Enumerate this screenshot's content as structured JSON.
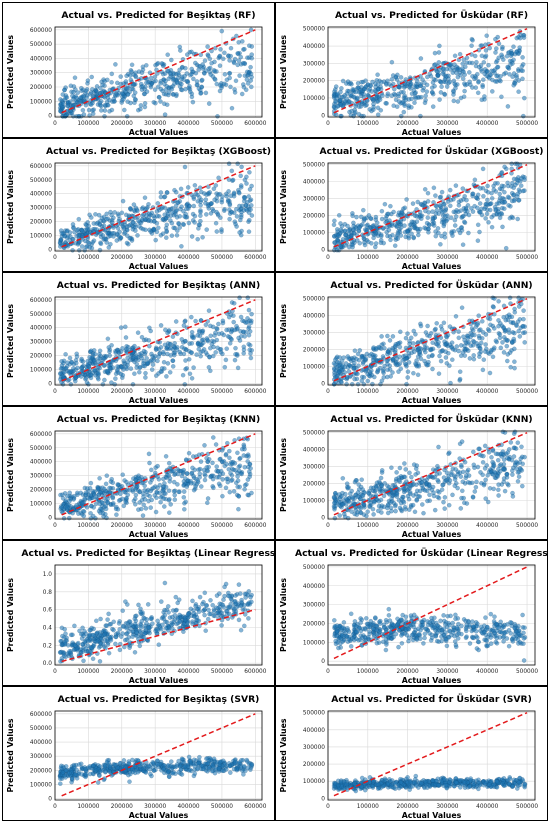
{
  "colors": {
    "point": "#1f77b4",
    "point_edge": "#0b3d66",
    "ideal_line": "#e31a1c"
  },
  "chart_data": [
    {
      "type": "scatter",
      "title": "Actual vs. Predicted for Beşiktaş (RF)",
      "xlabel": "Actual Values",
      "ylabel": "Predicted Values",
      "xlim": [
        0,
        620000
      ],
      "ylim": [
        -10000,
        620000
      ],
      "xticks": [
        0,
        100000,
        200000,
        300000,
        400000,
        500000,
        600000
      ],
      "yticks": [
        0,
        100000,
        200000,
        300000,
        400000,
        500000,
        600000
      ],
      "ideal_line": [
        [
          20000,
          20000
        ],
        [
          600000,
          600000
        ]
      ],
      "grid": true,
      "trend": "good"
    },
    {
      "type": "scatter",
      "title": "Actual vs. Predicted for Üsküdar (RF)",
      "xlabel": "Actual Values",
      "ylabel": "Predicted Values",
      "xlim": [
        0,
        520000
      ],
      "ylim": [
        -10000,
        510000
      ],
      "xticks": [
        0,
        100000,
        200000,
        300000,
        400000,
        500000
      ],
      "yticks": [
        0,
        100000,
        200000,
        300000,
        400000,
        500000
      ],
      "ideal_line": [
        [
          15000,
          15000
        ],
        [
          500000,
          500000
        ]
      ],
      "grid": true,
      "trend": "good"
    },
    {
      "type": "scatter",
      "title": "Actual vs. Predicted for Beşiktaş (XGBoost)",
      "xlabel": "Actual Values",
      "ylabel": "Predicted Values",
      "xlim": [
        0,
        620000
      ],
      "ylim": [
        -10000,
        620000
      ],
      "xticks": [
        0,
        100000,
        200000,
        300000,
        400000,
        500000,
        600000
      ],
      "yticks": [
        0,
        100000,
        200000,
        300000,
        400000,
        500000,
        600000
      ],
      "ideal_line": [
        [
          20000,
          20000
        ],
        [
          600000,
          600000
        ]
      ],
      "grid": true,
      "trend": "good"
    },
    {
      "type": "scatter",
      "title": "Actual vs. Predicted for Üsküdar (XGBoost)",
      "xlabel": "Actual Values",
      "ylabel": "Predicted Values",
      "xlim": [
        0,
        520000
      ],
      "ylim": [
        -10000,
        510000
      ],
      "xticks": [
        0,
        100000,
        200000,
        300000,
        400000,
        500000
      ],
      "yticks": [
        0,
        100000,
        200000,
        300000,
        400000,
        500000
      ],
      "ideal_line": [
        [
          15000,
          15000
        ],
        [
          500000,
          500000
        ]
      ],
      "grid": true,
      "trend": "good"
    },
    {
      "type": "scatter",
      "title": "Actual vs. Predicted for Beşiktaş (ANN)",
      "xlabel": "Actual Values",
      "ylabel": "Predicted Values",
      "xlim": [
        0,
        620000
      ],
      "ylim": [
        -10000,
        620000
      ],
      "xticks": [
        0,
        100000,
        200000,
        300000,
        400000,
        500000,
        600000
      ],
      "yticks": [
        0,
        100000,
        200000,
        300000,
        400000,
        500000,
        600000
      ],
      "ideal_line": [
        [
          20000,
          20000
        ],
        [
          600000,
          600000
        ]
      ],
      "grid": true,
      "trend": "good"
    },
    {
      "type": "scatter",
      "title": "Actual vs. Predicted for Üsküdar (ANN)",
      "xlabel": "Actual Values",
      "ylabel": "Predicted Values",
      "xlim": [
        0,
        520000
      ],
      "ylim": [
        -10000,
        510000
      ],
      "xticks": [
        0,
        100000,
        200000,
        300000,
        400000,
        500000
      ],
      "yticks": [
        0,
        100000,
        200000,
        300000,
        400000,
        500000
      ],
      "ideal_line": [
        [
          15000,
          15000
        ],
        [
          500000,
          500000
        ]
      ],
      "grid": true,
      "trend": "good"
    },
    {
      "type": "scatter",
      "title": "Actual vs. Predicted for Beşiktaş (KNN)",
      "xlabel": "Actual Values",
      "ylabel": "Predicted Values",
      "xlim": [
        0,
        620000
      ],
      "ylim": [
        -10000,
        620000
      ],
      "xticks": [
        0,
        100000,
        200000,
        300000,
        400000,
        500000,
        600000
      ],
      "yticks": [
        0,
        100000,
        200000,
        300000,
        400000,
        500000,
        600000
      ],
      "ideal_line": [
        [
          20000,
          20000
        ],
        [
          600000,
          600000
        ]
      ],
      "grid": true,
      "trend": "good"
    },
    {
      "type": "scatter",
      "title": "Actual vs. Predicted for Üsküdar (KNN)",
      "xlabel": "Actual Values",
      "ylabel": "Predicted Values",
      "xlim": [
        0,
        520000
      ],
      "ylim": [
        -10000,
        510000
      ],
      "xticks": [
        0,
        100000,
        200000,
        300000,
        400000,
        500000
      ],
      "yticks": [
        0,
        100000,
        200000,
        300000,
        400000,
        500000
      ],
      "ideal_line": [
        [
          15000,
          15000
        ],
        [
          500000,
          500000
        ]
      ],
      "grid": true,
      "trend": "good"
    },
    {
      "type": "scatter",
      "title": "Actual vs. Predicted for Beşiktaş (Linear Regression)",
      "xlabel": "Actual Values",
      "ylabel": "Predicted Values",
      "xlim": [
        0,
        620000
      ],
      "ylim": [
        -0.02,
        1.1
      ],
      "xticks": [
        0,
        100000,
        200000,
        300000,
        400000,
        500000,
        600000
      ],
      "yticks": [
        0.0,
        0.2,
        0.4,
        0.6,
        0.8,
        1.0
      ],
      "ytick_labels": [
        "0.0",
        "0.2",
        "0.4",
        "0.6",
        "0.8",
        "1.0"
      ],
      "ideal_line": [
        [
          20000,
          0.02
        ],
        [
          600000,
          0.6
        ]
      ],
      "grid": true,
      "trend": "linear_norm"
    },
    {
      "type": "scatter",
      "title": "Actual vs. Predicted for Üsküdar (Linear Regression)",
      "xlabel": "Actual Values",
      "ylabel": "Predicted Values",
      "xlim": [
        0,
        520000
      ],
      "ylim": [
        -20000,
        510000
      ],
      "xticks": [
        0,
        100000,
        200000,
        300000,
        400000,
        500000
      ],
      "yticks": [
        0,
        100000,
        200000,
        300000,
        400000,
        500000
      ],
      "ideal_line": [
        [
          15000,
          15000
        ],
        [
          500000,
          500000
        ]
      ],
      "grid": true,
      "trend": "flat_band"
    },
    {
      "type": "scatter",
      "title": "Actual vs. Predicted for Beşiktaş (SVR)",
      "xlabel": "Actual Values",
      "ylabel": "Predicted Values",
      "xlim": [
        0,
        620000
      ],
      "ylim": [
        -10000,
        620000
      ],
      "xticks": [
        0,
        100000,
        200000,
        300000,
        400000,
        500000,
        600000
      ],
      "yticks": [
        0,
        100000,
        200000,
        300000,
        400000,
        500000,
        600000
      ],
      "ideal_line": [
        [
          20000,
          20000
        ],
        [
          600000,
          600000
        ]
      ],
      "grid": true,
      "trend": "svr_b"
    },
    {
      "type": "scatter",
      "title": "Actual vs. Predicted for Üsküdar (SVR)",
      "xlabel": "Actual Values",
      "ylabel": "Predicted Values",
      "xlim": [
        0,
        520000
      ],
      "ylim": [
        -10000,
        510000
      ],
      "xticks": [
        0,
        100000,
        200000,
        300000,
        400000,
        500000
      ],
      "yticks": [
        0,
        100000,
        200000,
        300000,
        400000,
        500000
      ],
      "ideal_line": [
        [
          15000,
          15000
        ],
        [
          500000,
          500000
        ]
      ],
      "grid": true,
      "trend": "svr_u"
    }
  ]
}
